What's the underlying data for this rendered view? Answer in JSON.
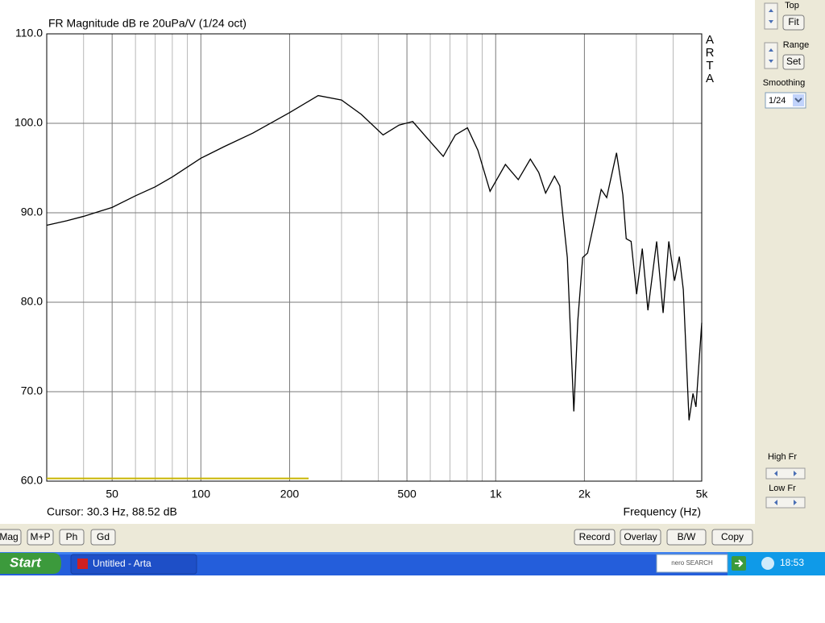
{
  "chart_data": {
    "type": "line",
    "title": "FR Magnitude dB re 20uPa/V (1/24 oct)",
    "xlabel": "Frequency (Hz)",
    "log_x": true,
    "grid": true,
    "xlim": [
      30,
      5000
    ],
    "ylim": [
      60,
      110
    ],
    "xticks": [
      50,
      100,
      200,
      500,
      {
        "value": 1000,
        "label": "1k"
      },
      {
        "value": 2000,
        "label": "2k"
      },
      {
        "value": 5000,
        "label": "5k"
      }
    ],
    "minor_xticks": [
      40,
      60,
      70,
      80,
      90,
      300,
      400,
      600,
      700,
      800,
      900,
      3000,
      4000
    ],
    "yticks": [
      {
        "value": 60,
        "label": "60.0"
      },
      {
        "value": 70,
        "label": "70.0"
      },
      {
        "value": 80,
        "label": "80.0"
      },
      {
        "value": 90,
        "label": "90.0"
      },
      {
        "value": 100,
        "label": "100.0"
      },
      {
        "value": 110,
        "label": "110.0"
      }
    ],
    "series": [
      {
        "color": "#000000",
        "x": [
          30,
          35,
          40,
          50,
          60,
          70,
          80,
          100,
          120,
          150,
          200,
          250,
          300,
          350,
          415,
          470,
          523,
          580,
          664,
          730,
          802,
          870,
          957,
          1079,
          1193,
          1311,
          1400,
          1477,
          1583,
          1650,
          1750,
          1841,
          1900,
          1973,
          2050,
          2280,
          2380,
          2570,
          2700,
          2772,
          2880,
          3006,
          3143,
          3284,
          3516,
          3698,
          3866,
          4043,
          4198,
          4330,
          4528,
          4670,
          4780,
          5000
        ],
        "values": [
          88.6,
          89.1,
          89.6,
          90.6,
          91.9,
          92.9,
          94.0,
          96.1,
          97.4,
          98.9,
          101.2,
          103.1,
          102.6,
          101.0,
          98.7,
          99.8,
          100.2,
          98.5,
          96.3,
          98.7,
          99.5,
          97.0,
          92.4,
          95.4,
          93.7,
          96.0,
          94.5,
          92.2,
          94.1,
          93.0,
          85.0,
          67.8,
          78.0,
          85.0,
          85.5,
          92.6,
          91.7,
          96.7,
          92.0,
          87.1,
          86.8,
          80.9,
          86.0,
          79.1,
          86.8,
          78.8,
          86.8,
          82.4,
          85.1,
          81.4,
          66.8,
          69.8,
          68.3,
          77.7
        ]
      },
      {
        "color": "#c8b400",
        "x": [
          30,
          232
        ],
        "values": [
          60.3,
          60.3
        ]
      }
    ]
  },
  "logo": [
    "A",
    "R",
    "T",
    "A"
  ],
  "cursor_readout": "Cursor: 30.3 Hz, 88.52 dB",
  "right_panel": {
    "top_label": "Top",
    "fit_button": "Fit",
    "range_label": "Range",
    "set_button": "Set",
    "smoothing_label": "Smoothing",
    "smoothing_value": "1/24",
    "high_fr_label": "High Fr",
    "low_fr_label": "Low Fr"
  },
  "view_buttons": [
    "Mag",
    "M+P",
    "Ph",
    "Gd"
  ],
  "action_buttons": [
    "Record",
    "Overlay",
    "B/W",
    "Copy"
  ],
  "taskbar": {
    "start": "Start",
    "task": "Untitled - Arta",
    "search": "nero SEARCH",
    "clock": "18:53"
  }
}
